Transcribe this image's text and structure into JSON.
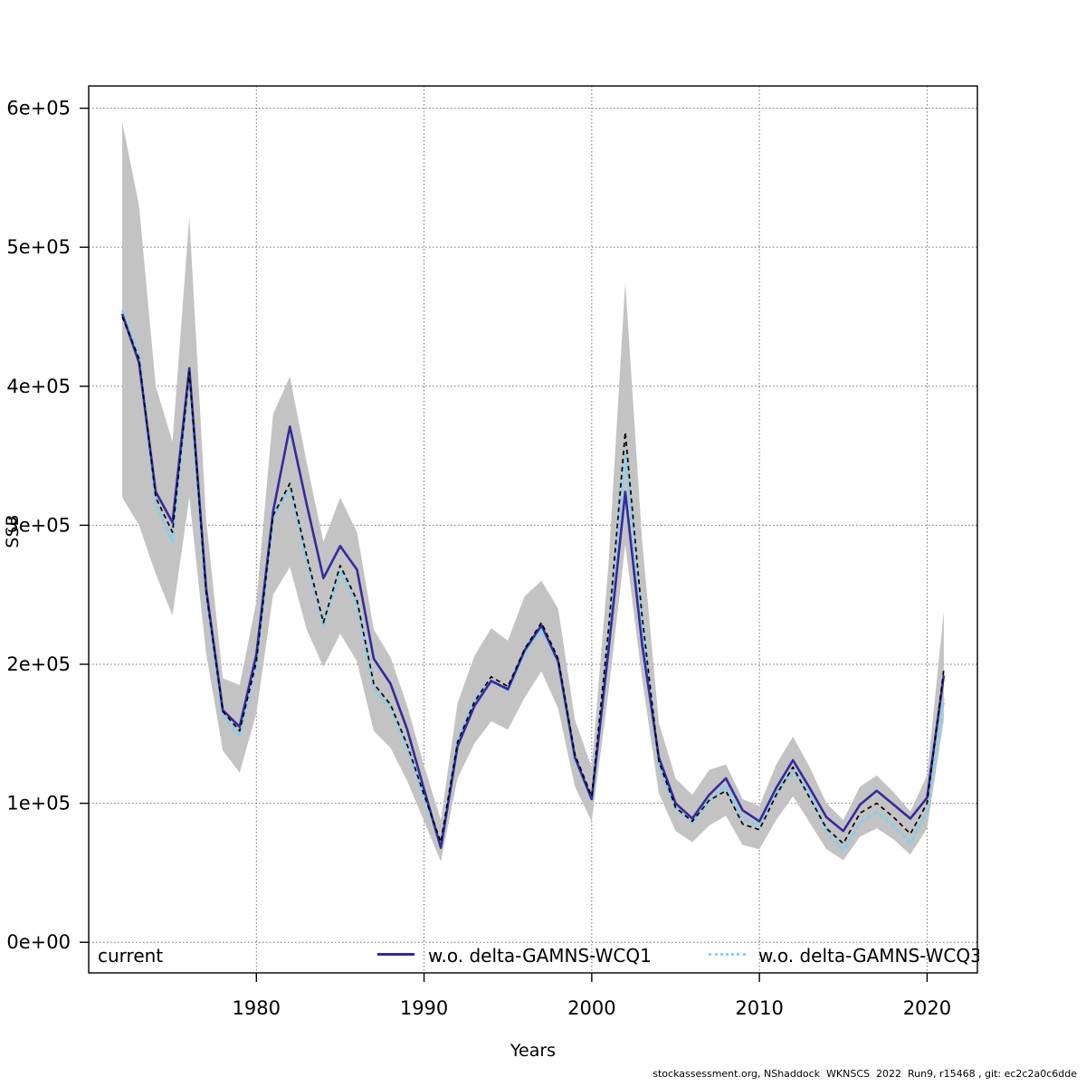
{
  "figure": {
    "xlabel": "Years",
    "ylabel": "SSB",
    "footer": "stockassessment.org, NShaddock  WKNSCS  2022  Run9, r15468 , git: ec2c2a0c6dde",
    "legend": [
      {
        "label": "current",
        "line": "none",
        "color": "#000000"
      },
      {
        "label": "w.o. delta-GAMNS-WCQ1",
        "line": "solid",
        "color": "#34299e"
      },
      {
        "label": "w.o. delta-GAMNS-WCQ3",
        "line": "dotted",
        "color": "#87ceeb"
      }
    ]
  },
  "chart_data": {
    "type": "line",
    "title": "",
    "xlabel": "Years",
    "ylabel": "SSB",
    "grid": "dotted",
    "legend_position": "bottom",
    "xlim": [
      1970,
      2023
    ],
    "ylim": [
      -22000,
      616000
    ],
    "xticks": [
      1980,
      1990,
      2000,
      2010,
      2020
    ],
    "yticks": [
      {
        "v": 0,
        "label": "0e+00"
      },
      {
        "v": 100000,
        "label": "1e+05"
      },
      {
        "v": 200000,
        "label": "2e+05"
      },
      {
        "v": 300000,
        "label": "3e+05"
      },
      {
        "v": 400000,
        "label": "4e+05"
      },
      {
        "v": 500000,
        "label": "5e+05"
      },
      {
        "v": 600000,
        "label": "6e+05"
      }
    ],
    "x": [
      1972,
      1973,
      1974,
      1975,
      1976,
      1977,
      1978,
      1979,
      1980,
      1981,
      1982,
      1983,
      1984,
      1985,
      1986,
      1987,
      1988,
      1989,
      1990,
      1991,
      1992,
      1993,
      1994,
      1995,
      1996,
      1997,
      1998,
      1999,
      2000,
      2001,
      2002,
      2003,
      2004,
      2005,
      2006,
      2007,
      2008,
      2009,
      2010,
      2011,
      2012,
      2013,
      2014,
      2015,
      2016,
      2017,
      2018,
      2019,
      2020,
      2021
    ],
    "series": [
      {
        "name": "current",
        "style": "dashed",
        "color": "#000000",
        "values": [
          450000,
          420000,
          320000,
          295000,
          410000,
          252000,
          166000,
          152000,
          202000,
          307000,
          330000,
          278000,
          230000,
          271000,
          246000,
          186000,
          171000,
          142000,
          106000,
          72000,
          144000,
          173000,
          191000,
          184000,
          211000,
          230000,
          204000,
          135000,
          105000,
          225000,
          367000,
          235000,
          130000,
          97000,
          87000,
          102000,
          109000,
          85000,
          81000,
          106000,
          126000,
          104000,
          82000,
          71000,
          93000,
          100000,
          90000,
          78000,
          100000,
          196000
        ]
      },
      {
        "name": "w.o. delta-GAMNS-WCQ1",
        "style": "solid",
        "color": "#34299e",
        "values": [
          452000,
          417000,
          324000,
          302000,
          413000,
          255000,
          167000,
          155000,
          207000,
          310000,
          371000,
          315000,
          262000,
          285000,
          268000,
          204000,
          186000,
          153000,
          110000,
          68000,
          141000,
          170000,
          188000,
          182000,
          210000,
          228000,
          202000,
          133000,
          103000,
          210000,
          324000,
          215000,
          133000,
          100000,
          89000,
          106000,
          118000,
          95000,
          87000,
          111000,
          131000,
          111000,
          90000,
          80000,
          99000,
          109000,
          99000,
          89000,
          104000,
          192000
        ]
      },
      {
        "name": "w.o. delta-GAMNS-WCQ3",
        "style": "dotted",
        "color": "#87ceeb",
        "values": [
          455000,
          422000,
          315000,
          288000,
          407000,
          248000,
          163000,
          149000,
          200000,
          305000,
          326000,
          275000,
          228000,
          267000,
          243000,
          183000,
          168000,
          140000,
          104000,
          70000,
          145000,
          174000,
          188000,
          181000,
          208000,
          225000,
          200000,
          132000,
          102000,
          220000,
          350000,
          230000,
          128000,
          96000,
          86000,
          101000,
          113000,
          89000,
          84000,
          108000,
          123000,
          107000,
          80000,
          66000,
          86000,
          94000,
          84000,
          71000,
          94000,
          175000
        ]
      }
    ],
    "band": {
      "name": "current confidence interval",
      "color": "#c3c3c3",
      "hi": [
        590000,
        530000,
        400000,
        360000,
        522000,
        305000,
        190000,
        185000,
        245000,
        380000,
        407000,
        345000,
        288000,
        320000,
        295000,
        225000,
        205000,
        170000,
        127000,
        88000,
        172000,
        206000,
        226000,
        217000,
        249000,
        260000,
        240000,
        160000,
        126000,
        272000,
        475000,
        290000,
        158000,
        118000,
        106000,
        124000,
        128000,
        103000,
        98000,
        128000,
        148000,
        126000,
        100000,
        88000,
        112000,
        120000,
        108000,
        94000,
        120000,
        238000
      ],
      "lo": [
        320000,
        300000,
        265000,
        235000,
        320000,
        208000,
        138000,
        122000,
        165000,
        250000,
        270000,
        225000,
        198000,
        222000,
        202000,
        152000,
        140000,
        116000,
        87000,
        58000,
        118000,
        143000,
        159000,
        153000,
        176000,
        195000,
        168000,
        112000,
        87000,
        180000,
        286000,
        190000,
        107000,
        80000,
        72000,
        84000,
        91000,
        70000,
        67000,
        88000,
        105000,
        86000,
        67000,
        59000,
        76000,
        82000,
        74000,
        63000,
        82000,
        160000
      ]
    }
  }
}
